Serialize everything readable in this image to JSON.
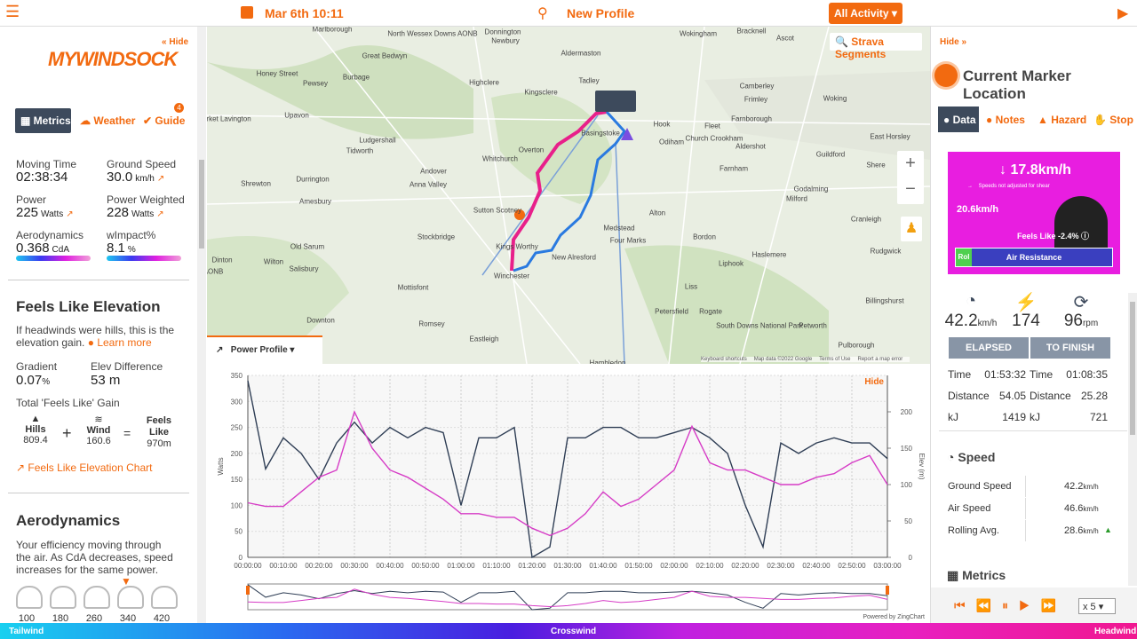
{
  "topbar": {
    "date": "Mar 6th 10:11",
    "profile": "New Profile",
    "activity": "All Activity"
  },
  "left": {
    "hide": "Hide",
    "tabs": [
      "Metrics",
      "Weather",
      "Guide"
    ],
    "guide_badge": "4",
    "metrics": [
      {
        "label": "Moving Time",
        "value": "02:38:34"
      },
      {
        "label": "Ground Speed",
        "value": "30.0",
        "unit": "km/h"
      },
      {
        "label": "Power",
        "value": "225",
        "unit": "Watts"
      },
      {
        "label": "Power Weighted",
        "value": "228",
        "unit": "Watts"
      },
      {
        "label": "Aerodynamics",
        "value": "0.368",
        "unit": "CdA"
      },
      {
        "label": "wImpact%",
        "value": "8.1",
        "unit": "%"
      }
    ],
    "feels_like": {
      "title": "Feels Like Elevation",
      "desc": "If headwinds were hills, this is the elevation gain.",
      "learn_more": "Learn more",
      "gradient_label": "Gradient",
      "gradient": "0.07",
      "gradient_unit": "%",
      "elev_diff_label": "Elev Difference",
      "elev_diff": "53 m",
      "gain_label": "Total 'Feels Like' Gain",
      "hills_label": "Hills",
      "hills": "809.4",
      "wind_label": "Wind",
      "wind": "160.6",
      "fl_label": "Feels Like",
      "fl": "970m",
      "chart_link": "Feels Like Elevation Chart"
    },
    "aero": {
      "title": "Aerodynamics",
      "desc": "Your efficiency moving through the air. As CdA decreases, speed increases for the same power.",
      "scale": [
        "100",
        "180",
        "260",
        "340",
        "420"
      ]
    }
  },
  "map": {
    "strava": "Strava Segments",
    "labels": [
      "Marlborough",
      "North Wessex Downs AONB",
      "Donnington",
      "Newbury",
      "Aldermaston",
      "Wokingham",
      "Bracknell",
      "Ascot",
      "Great Bedwyn",
      "Honey Street",
      "Burbage",
      "Pewsey",
      "Highclere",
      "Tadley",
      "Kingsclere",
      "Camberley",
      "Frimley",
      "Woking",
      "Market Lavington",
      "Upavon",
      "Ludgershall",
      "Tidworth",
      "Overton",
      "Whitchurch",
      "Basingstoke",
      "Hook",
      "Odiham",
      "Fleet",
      "Church Crookham",
      "Farnborough",
      "Aldershot",
      "Guildford",
      "East Horsley",
      "Andover",
      "Shrewton",
      "Durrington",
      "Anna Valley",
      "Farnham",
      "Shere",
      "Godalming",
      "Milford",
      "Amesbury",
      "Sutton Scotney",
      "Alton",
      "Cranleigh",
      "Old Sarum",
      "Stockbridge",
      "Kings Worthy",
      "Medstead",
      "Four Marks",
      "Bordon",
      "Haslemere",
      "Rudgwick",
      "Dinton",
      "Wilton",
      "Salisbury",
      "New Alresford",
      "Liphook",
      "Winchester",
      "Mottisfont",
      "Liss",
      "Petersfield",
      "Rogate",
      "South Downs National Park",
      "Petworth",
      "Billingshurst",
      "Downton",
      "Romsey",
      "Eastleigh",
      "Pulborough",
      "Hambledon",
      "AONB"
    ],
    "attribution": [
      "Keyboard shortcuts",
      "Map data ©2022 Google",
      "Terms of Use",
      "Report a map error"
    ]
  },
  "chart_data": {
    "type": "line",
    "menu": "Power Profile",
    "hide": "Hide",
    "ylabel": "Watts",
    "y2label": "Elev (m)",
    "x": [
      0,
      5,
      10,
      15,
      20,
      25,
      30,
      35,
      40,
      45,
      50,
      55,
      60,
      65,
      70,
      75,
      80,
      85,
      90,
      95,
      100,
      105,
      110,
      115,
      120,
      125,
      130,
      135,
      140,
      145,
      150,
      155,
      160,
      165,
      170,
      175,
      180
    ],
    "xlim": [
      0,
      180
    ],
    "xticks": [
      {
        "value": 0,
        "label": "00:00:00"
      },
      {
        "value": 10,
        "label": "00:10:00"
      },
      {
        "value": 20,
        "label": "00:20:00"
      },
      {
        "value": 30,
        "label": "00:30:00"
      },
      {
        "value": 40,
        "label": "00:40:00"
      },
      {
        "value": 50,
        "label": "00:50:00"
      },
      {
        "value": 60,
        "label": "01:00:00"
      },
      {
        "value": 70,
        "label": "01:10:00"
      },
      {
        "value": 80,
        "label": "01:20:00"
      },
      {
        "value": 90,
        "label": "01:30:00"
      },
      {
        "value": 100,
        "label": "01:40:00"
      },
      {
        "value": 110,
        "label": "01:50:00"
      },
      {
        "value": 120,
        "label": "02:00:00"
      },
      {
        "value": 130,
        "label": "02:10:00"
      },
      {
        "value": 140,
        "label": "02:20:00"
      },
      {
        "value": 150,
        "label": "02:30:00"
      },
      {
        "value": 160,
        "label": "02:40:00"
      },
      {
        "value": 170,
        "label": "02:50:00"
      },
      {
        "value": 180,
        "label": "03:00:00"
      }
    ],
    "ylim": [
      0,
      350
    ],
    "yticks": [
      0,
      50,
      100,
      150,
      200,
      250,
      300,
      350
    ],
    "y2lim": [
      0,
      250
    ],
    "y2ticks": [
      0,
      50,
      100,
      150,
      200
    ],
    "grid": true,
    "series": [
      {
        "color": "#2f3e55",
        "values": [
          340,
          170,
          230,
          200,
          150,
          220,
          260,
          220,
          250,
          230,
          250,
          240,
          100,
          230,
          230,
          250,
          0,
          20,
          230,
          230,
          250,
          250,
          230,
          230,
          240,
          250,
          230,
          200,
          100,
          20,
          220,
          200,
          220,
          230,
          220,
          220,
          190
        ]
      },
      {
        "color": "#d63cc6",
        "axis": "y2",
        "values": [
          75,
          70,
          70,
          90,
          110,
          120,
          200,
          150,
          120,
          110,
          95,
          80,
          60,
          60,
          55,
          55,
          40,
          30,
          40,
          60,
          90,
          70,
          80,
          100,
          120,
          180,
          130,
          120,
          120,
          110,
          100,
          100,
          110,
          115,
          130,
          140,
          100
        ]
      }
    ],
    "credit": "Powered by ZingChart"
  },
  "right": {
    "hide": "Hide",
    "title": "Current Marker Location",
    "tabs": [
      "Data",
      "Notes",
      "Hazard",
      "Stop"
    ],
    "gauge": {
      "speed": "17.8km/h",
      "note": "Speeds not adjusted for shear",
      "air": "20.6km/h",
      "feels": "Feels Like -2.4%",
      "rol": "Rol",
      "air_res": "Air Resistance"
    },
    "stats": [
      {
        "value": "42.2",
        "unit": "km/h"
      },
      {
        "value": "174"
      },
      {
        "value": "96",
        "unit": "rpm"
      }
    ],
    "elapsed": {
      "title": "ELAPSED",
      "rows": [
        [
          "Time",
          "01:53:32"
        ],
        [
          "Distance",
          "54.05"
        ],
        [
          "kJ",
          "1419"
        ]
      ]
    },
    "finish": {
      "title": "TO FINISH",
      "rows": [
        [
          "Time",
          "01:08:35"
        ],
        [
          "Distance",
          "25.28"
        ],
        [
          "kJ",
          "721"
        ]
      ]
    },
    "speed": {
      "title": "Speed",
      "rows": [
        {
          "label": "Ground Speed",
          "value": "42.2",
          "unit": "km/h"
        },
        {
          "label": "Air Speed",
          "value": "46.6",
          "unit": "km/h"
        },
        {
          "label": "Rolling Avg.",
          "value": "28.6",
          "unit": "km/h"
        }
      ]
    },
    "metrics_title": "Metrics",
    "playback": "x 5"
  },
  "bottom": {
    "labels": [
      "Tailwind",
      "Crosswind",
      "Headwind"
    ]
  }
}
